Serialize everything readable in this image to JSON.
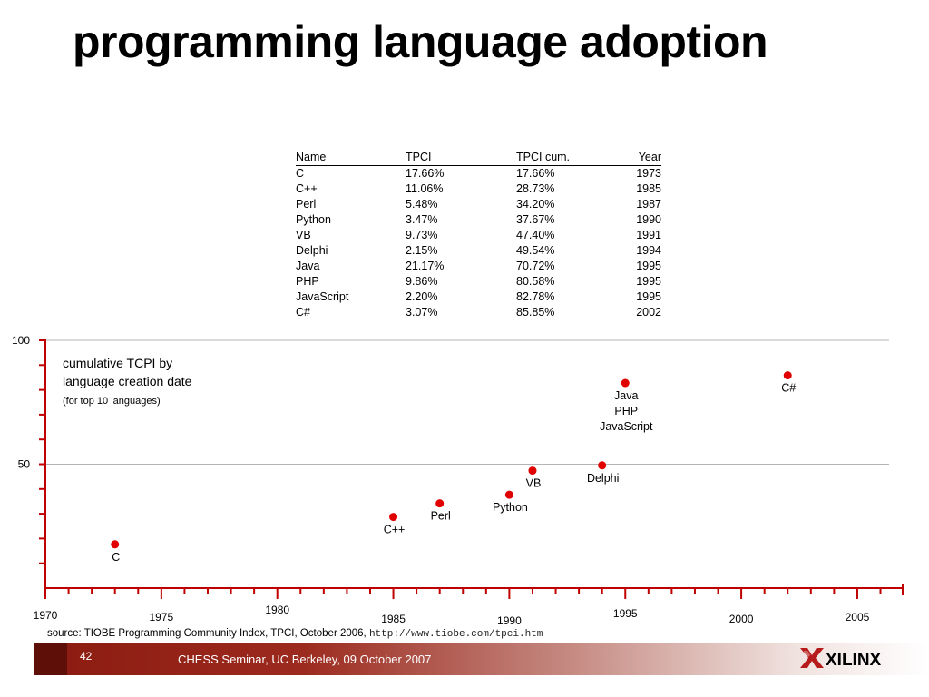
{
  "title": "programming language adoption",
  "table": {
    "headers": [
      "Name",
      "TPCI",
      "TPCI cum.",
      "Year"
    ],
    "rows": [
      [
        "C",
        "17.66%",
        "17.66%",
        "1973"
      ],
      [
        "C++",
        "11.06%",
        "28.73%",
        "1985"
      ],
      [
        "Perl",
        "5.48%",
        "34.20%",
        "1987"
      ],
      [
        "Python",
        "3.47%",
        "37.67%",
        "1990"
      ],
      [
        "VB",
        "9.73%",
        "47.40%",
        "1991"
      ],
      [
        "Delphi",
        "2.15%",
        "49.54%",
        "1994"
      ],
      [
        "Java",
        "21.17%",
        "70.72%",
        "1995"
      ],
      [
        "PHP",
        "9.86%",
        "80.58%",
        "1995"
      ],
      [
        "JavaScript",
        "2.20%",
        "82.78%",
        "1995"
      ],
      [
        "C#",
        "3.07%",
        "85.85%",
        "2002"
      ]
    ]
  },
  "chart_data": {
    "type": "scatter",
    "annotation": {
      "line1": "cumulative TCPI by",
      "line2": "language creation date",
      "line3": "(for top 10 languages)"
    },
    "xlim": [
      1970,
      2007
    ],
    "ylim": [
      0,
      100
    ],
    "x_ticks": [
      1970,
      1975,
      1980,
      1985,
      1990,
      1995,
      2000,
      2005
    ],
    "y_ticks": [
      50,
      100
    ],
    "gridlines": [
      50,
      100
    ],
    "point_color": "#e00000",
    "points": [
      {
        "x": 1973,
        "y": 17.66,
        "label": [
          "C"
        ]
      },
      {
        "x": 1985,
        "y": 28.73,
        "label": [
          "C++"
        ]
      },
      {
        "x": 1987,
        "y": 34.2,
        "label": [
          "Perl"
        ]
      },
      {
        "x": 1990,
        "y": 37.67,
        "label": [
          "Python"
        ]
      },
      {
        "x": 1991,
        "y": 47.4,
        "label": [
          "VB"
        ]
      },
      {
        "x": 1994,
        "y": 49.54,
        "label": [
          "Delphi"
        ]
      },
      {
        "x": 1995,
        "y": 82.78,
        "label": [
          "Java",
          "PHP",
          "JavaScript"
        ]
      },
      {
        "x": 2002,
        "y": 85.85,
        "label": [
          "C#"
        ]
      }
    ]
  },
  "source": {
    "text": "source: TIOBE Programming Community Index, TPCI, October 2006,",
    "url": "http://www.tiobe.com/tpci.htm"
  },
  "footer": {
    "page_number": "42",
    "text": "CHESS Seminar, UC Berkeley, 09 October 2007",
    "logo_text": "XILINX",
    "band_color": "#8b1a10"
  }
}
